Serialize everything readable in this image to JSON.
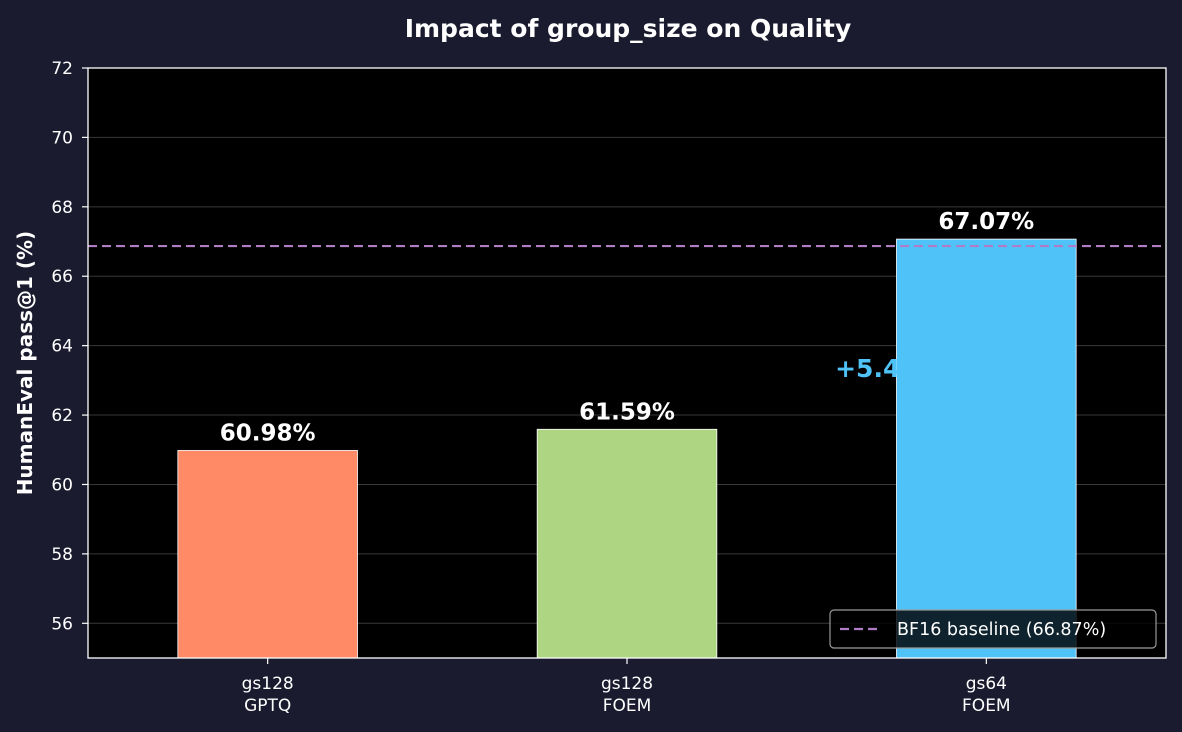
{
  "chart_data": {
    "type": "bar",
    "title": "Impact of group_size on Quality",
    "ylabel": "HumanEval pass@1 (%)",
    "xlabel": "",
    "ylim": [
      55,
      72
    ],
    "yticks": [
      56,
      58,
      60,
      62,
      64,
      66,
      68,
      70,
      72
    ],
    "grid": true,
    "categories": [
      "gs128\nGPTQ",
      "gs128\nFOEM",
      "gs64\nFOEM"
    ],
    "values": [
      60.98,
      61.59,
      67.07
    ],
    "value_labels": [
      "60.98%",
      "61.59%",
      "67.07%"
    ],
    "bar_colors": [
      "#ff8a65",
      "#aed581",
      "#4fc3f7"
    ],
    "baseline": {
      "value": 66.87,
      "label": "BF16 baseline (66.87%)",
      "color": "#b07cc6",
      "style": "dashed"
    },
    "annotations": [
      {
        "text": "+5.48pp",
        "from_category_index": 1,
        "to_category_index": 2,
        "color": "#4fc3f7"
      }
    ],
    "legend": {
      "placement": "lower right",
      "entries": [
        "BF16 baseline (66.87%)"
      ]
    },
    "colors": {
      "page_background": "#1b1b2f",
      "plot_background": "#000000",
      "text": "#ffffff"
    }
  }
}
